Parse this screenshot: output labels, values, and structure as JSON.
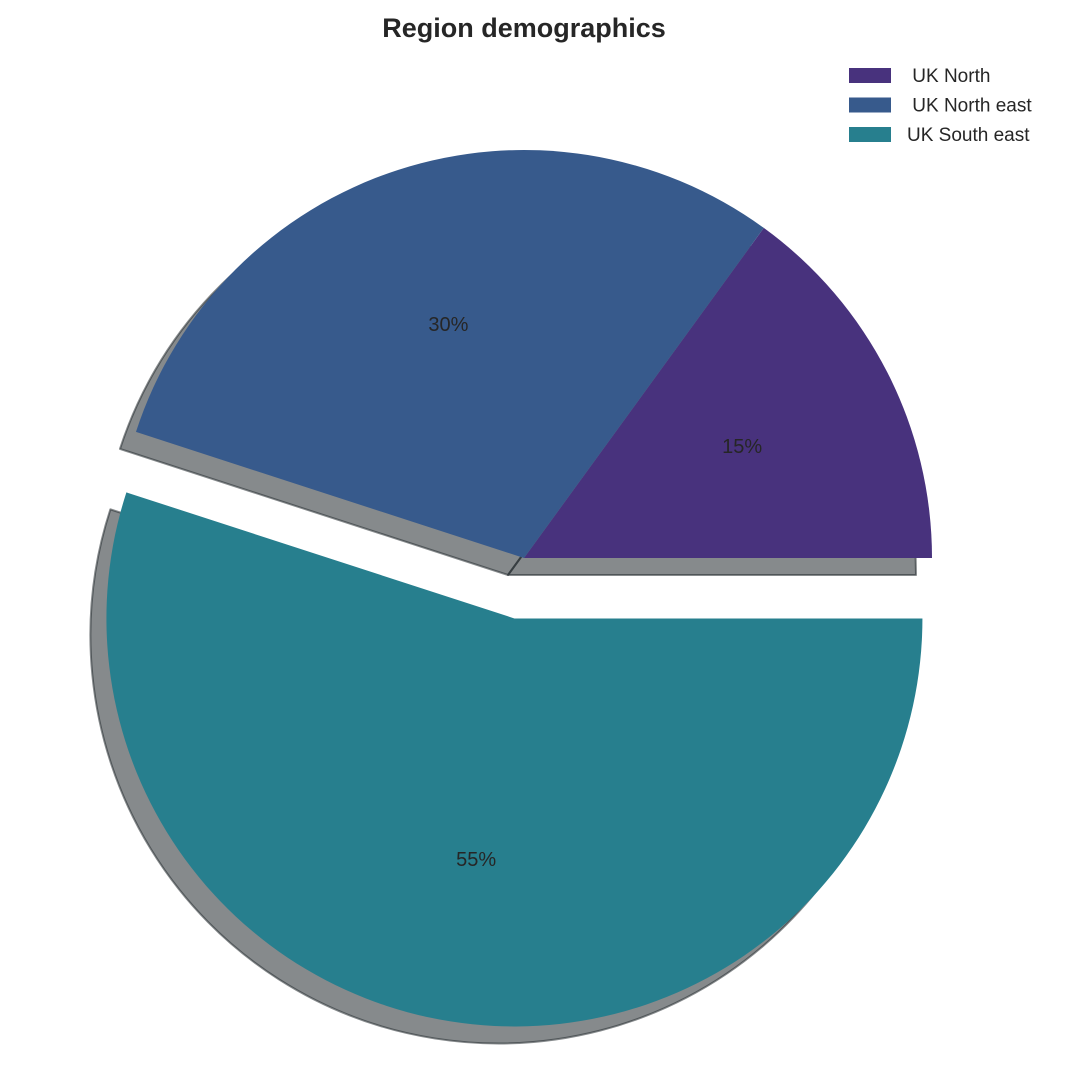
{
  "chart_data": {
    "type": "pie",
    "title": "Region demographics",
    "categories": [
      " UK North",
      " UK North east",
      "UK South east"
    ],
    "values": [
      15,
      30,
      55
    ],
    "labels": [
      "15%",
      "30%",
      "55%"
    ],
    "colors": [
      "#48327d",
      "#375a8c",
      "#277f8e"
    ],
    "explode": [
      0,
      0,
      0.15
    ],
    "shadow": true,
    "start_angle_deg": 0,
    "direction": "counterclockwise",
    "legend_placement": "upper-right"
  }
}
